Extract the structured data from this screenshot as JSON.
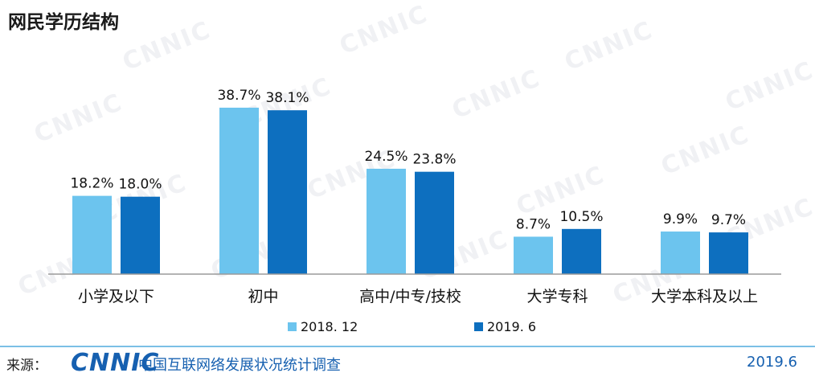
{
  "title": "网民学历结构",
  "watermark": "CNNIC",
  "chart_data": {
    "type": "bar",
    "categories": [
      "小学及以下",
      "初中",
      "高中/中专/技校",
      "大学专科",
      "大学本科及以上"
    ],
    "series": [
      {
        "name": "2018. 12",
        "color": "#6cc4ee",
        "values": [
          18.2,
          38.7,
          24.5,
          8.7,
          9.9
        ]
      },
      {
        "name": "2019. 6",
        "color": "#0d6fbf",
        "values": [
          18.0,
          38.1,
          23.8,
          10.5,
          9.7
        ]
      }
    ],
    "value_labels": [
      [
        "18.2%",
        "38.7%",
        "24.5%",
        "8.7%",
        "9.9%"
      ],
      [
        "18.0%",
        "38.1%",
        "23.8%",
        "10.5%",
        "9.7%"
      ]
    ],
    "ylim": [
      0,
      40
    ],
    "grid": false,
    "legend_position": "bottom-center"
  },
  "footer": {
    "source_label": "来源：",
    "logo_text": "CNNIC",
    "survey_title": "中国互联网络发展状况统计调查",
    "date": "2019.6"
  }
}
